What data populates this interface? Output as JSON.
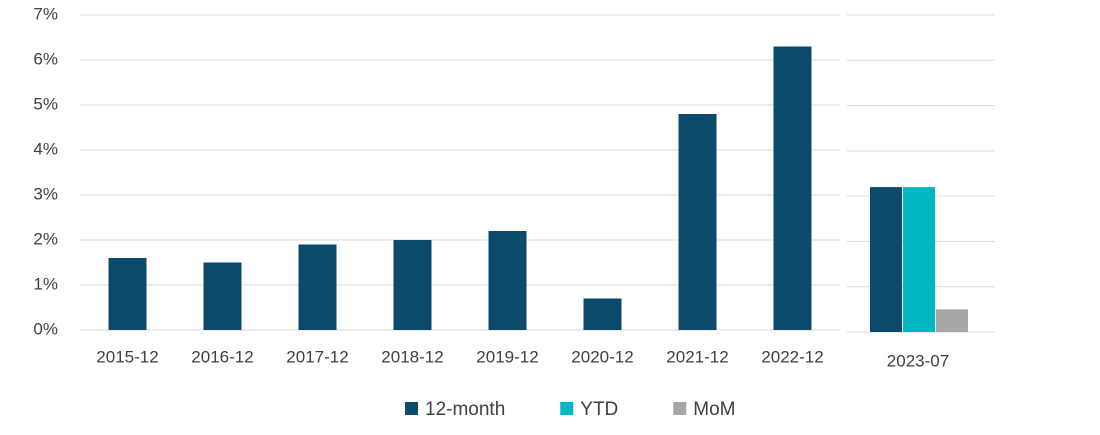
{
  "chart_data": [
    {
      "type": "bar",
      "categories": [
        "2015-12",
        "2016-12",
        "2017-12",
        "2018-12",
        "2019-12",
        "2020-12",
        "2021-12",
        "2022-12"
      ],
      "values": [
        1.6,
        1.5,
        1.9,
        2.0,
        2.2,
        0.7,
        4.8,
        6.3
      ],
      "color": "#0b4a6b",
      "ylim": [
        0,
        7
      ],
      "yticks": [
        {
          "value": 0,
          "label": "0%"
        },
        {
          "value": 1,
          "label": "1%"
        },
        {
          "value": 2,
          "label": "2%"
        },
        {
          "value": 3,
          "label": "3%"
        },
        {
          "value": 4,
          "label": "4%"
        },
        {
          "value": 5,
          "label": "5%"
        },
        {
          "value": 6,
          "label": "6%"
        },
        {
          "value": 7,
          "label": "7%"
        }
      ],
      "grid": true
    },
    {
      "type": "grouped-bar",
      "categories": [
        "2023-07"
      ],
      "series": [
        {
          "name": "12-month",
          "color": "#0b4a6b",
          "values": [
            3.2
          ]
        },
        {
          "name": "YTD",
          "color": "#00b8c4",
          "values": [
            3.2
          ]
        },
        {
          "name": "MoM",
          "color": "#a6a6a6",
          "values": [
            0.5
          ]
        }
      ],
      "ylim": [
        0,
        7
      ],
      "yticks": [
        0,
        1,
        2,
        3,
        4,
        5,
        6,
        7
      ],
      "grid": true
    }
  ]
}
